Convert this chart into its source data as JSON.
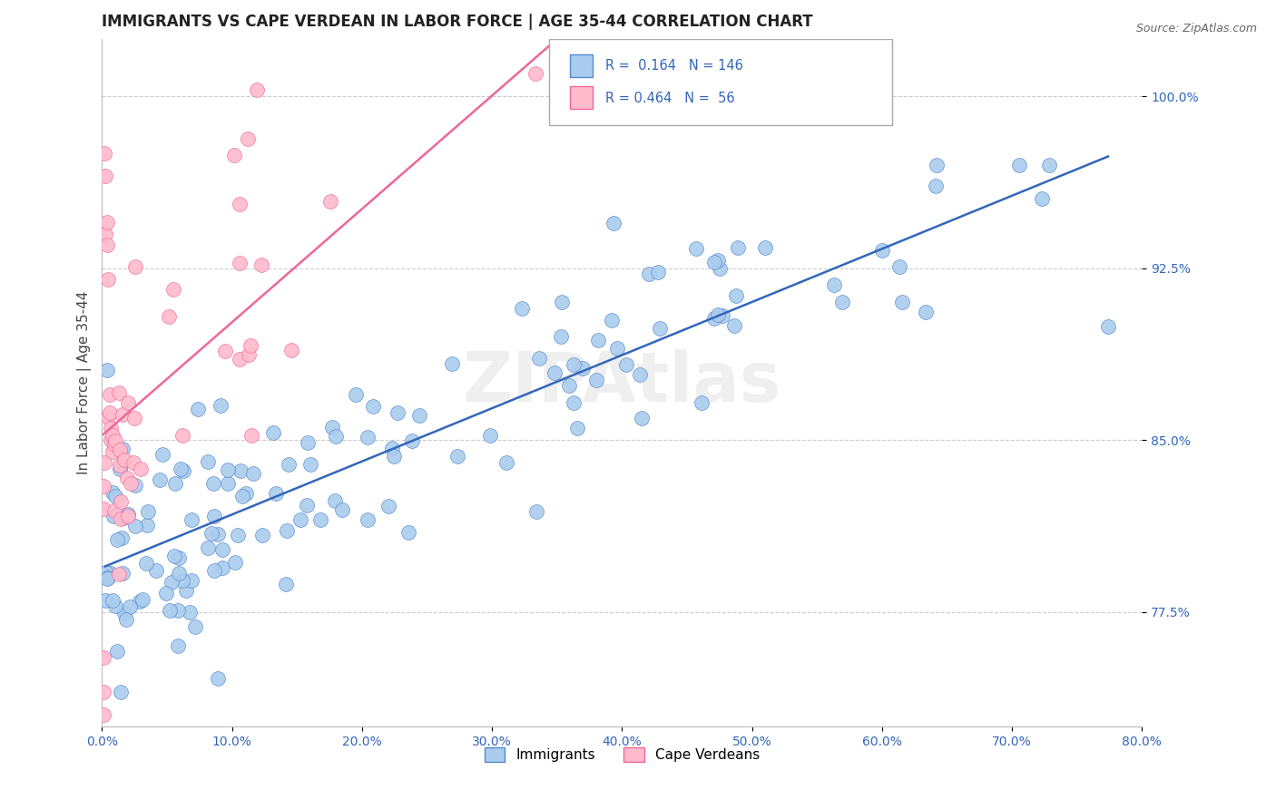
{
  "title": "IMMIGRANTS VS CAPE VERDEAN IN LABOR FORCE | AGE 35-44 CORRELATION CHART",
  "source": "Source: ZipAtlas.com",
  "ylabel": "In Labor Force | Age 35-44",
  "xlim": [
    0.0,
    0.8
  ],
  "ylim": [
    0.725,
    1.025
  ],
  "yticks": [
    0.775,
    0.85,
    0.925,
    1.0
  ],
  "ytick_labels": [
    "77.5%",
    "85.0%",
    "92.5%",
    "100.0%"
  ],
  "xticks": [
    0.0,
    0.1,
    0.2,
    0.3,
    0.4,
    0.5,
    0.6,
    0.7,
    0.8
  ],
  "xtick_labels": [
    "0.0%",
    "10.0%",
    "20.0%",
    "30.0%",
    "40.0%",
    "50.0%",
    "60.0%",
    "70.0%",
    "80.0%"
  ],
  "immigrants_color": "#aaccee",
  "cape_verdean_color": "#ffbbcc",
  "immigrants_edge_color": "#5588cc",
  "cape_verdean_edge_color": "#ee6699",
  "immigrants_line_color": "#3366bb",
  "cape_verdean_line_color": "#ee6699",
  "R_immigrants": 0.164,
  "N_immigrants": 146,
  "R_cape_verdean": 0.464,
  "N_cape_verdean": 56,
  "legend_label_immigrants": "Immigrants",
  "legend_label_cape_verdean": "Cape Verdeans",
  "watermark": "ZIPAtlas",
  "title_fontsize": 12,
  "axis_label_fontsize": 11,
  "tick_fontsize": 10
}
